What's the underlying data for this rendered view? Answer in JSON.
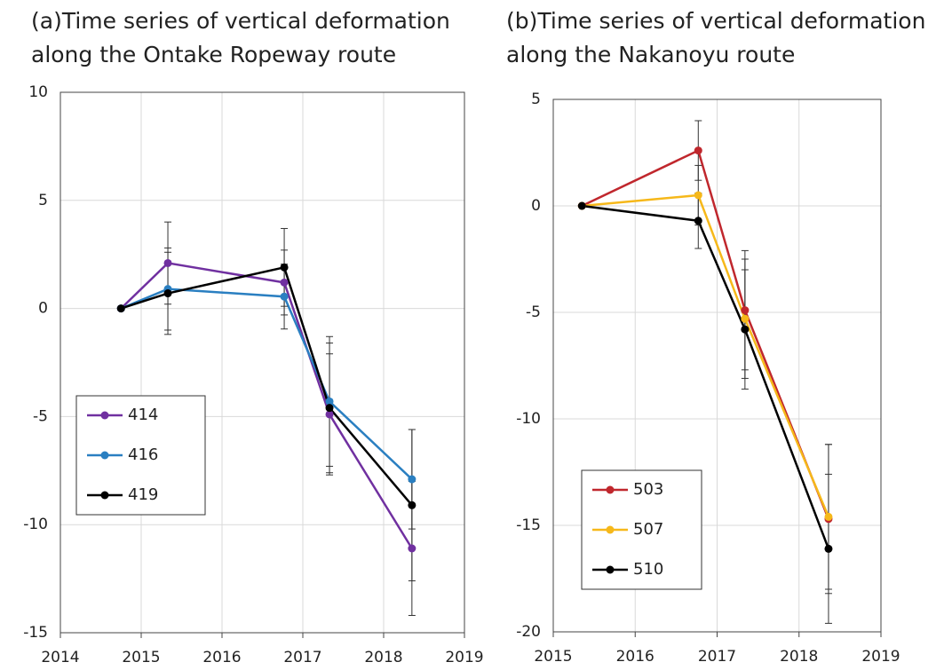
{
  "chart_data": [
    {
      "type": "line",
      "title": [
        "(a)Time series of vertical deformation",
        "along the Ontake Ropeway route"
      ],
      "x": [
        2014.75,
        2015.33,
        2016.77,
        2017.33,
        2018.35
      ],
      "xlim": [
        2014,
        2019
      ],
      "xticks": [
        2014,
        2015,
        2016,
        2017,
        2018,
        2019
      ],
      "ylim": [
        -15,
        10
      ],
      "yticks": [
        -15,
        -10,
        -5,
        0,
        5,
        10
      ],
      "grid": true,
      "legend": "lower left",
      "series": [
        {
          "name": "414",
          "color": "#7030a0",
          "values": [
            0,
            2.1,
            1.2,
            -4.9,
            -11.1
          ],
          "errors": [
            0,
            1.9,
            1.5,
            2.8,
            3.1
          ]
        },
        {
          "name": "416",
          "color": "#2a7fc1",
          "values": [
            0,
            0.9,
            0.55,
            -4.3,
            -7.9
          ],
          "errors": [
            0,
            1.9,
            1.5,
            3.0,
            2.3
          ]
        },
        {
          "name": "419",
          "color": "#000000",
          "values": [
            0,
            0.7,
            1.9,
            -4.6,
            -9.1
          ],
          "errors": [
            0,
            1.9,
            1.8,
            3.0,
            3.5
          ]
        }
      ]
    },
    {
      "type": "line",
      "title": [
        "(b)Time series of vertical deformation",
        "along the Nakanoyu route"
      ],
      "x": [
        2015.35,
        2016.77,
        2017.34,
        2018.36
      ],
      "xlim": [
        2015,
        2019
      ],
      "xticks": [
        2015,
        2016,
        2017,
        2018,
        2019
      ],
      "ylim": [
        -20,
        5
      ],
      "yticks": [
        -20,
        -15,
        -10,
        -5,
        0,
        5
      ],
      "grid": true,
      "legend": "lower left",
      "series": [
        {
          "name": "503",
          "color": "#c0272d",
          "values": [
            0,
            2.6,
            -4.9,
            -14.7
          ],
          "errors": [
            0,
            1.4,
            2.8,
            3.5
          ]
        },
        {
          "name": "507",
          "color": "#f6b81a",
          "values": [
            0,
            0.5,
            -5.3,
            -14.6
          ],
          "errors": [
            0,
            1.4,
            2.8,
            3.4
          ]
        },
        {
          "name": "510",
          "color": "#000000",
          "values": [
            0,
            -0.7,
            -5.8,
            -16.1
          ],
          "errors": [
            0,
            1.3,
            2.8,
            3.5
          ]
        }
      ]
    }
  ]
}
